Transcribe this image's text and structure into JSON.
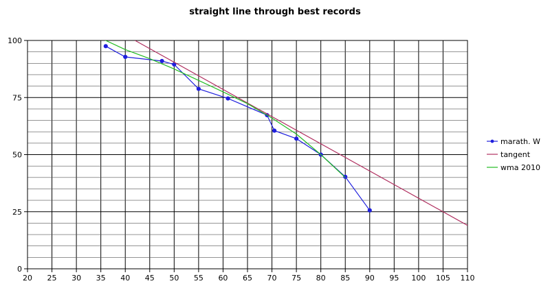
{
  "chart_data": {
    "type": "line",
    "title": "straight line through best records",
    "xlabel": "",
    "ylabel": "",
    "xlim": [
      20,
      110
    ],
    "ylim": [
      0,
      100
    ],
    "x_ticks": [
      20,
      25,
      30,
      35,
      40,
      45,
      50,
      55,
      60,
      65,
      70,
      75,
      80,
      85,
      90,
      95,
      100,
      105,
      110
    ],
    "y_ticks": [
      0,
      25,
      50,
      75,
      100
    ],
    "grid": true,
    "legend_position": "right",
    "series": [
      {
        "name": "marath. W",
        "color": "#1f1fdd",
        "markers": true,
        "points": [
          [
            36,
            97.5
          ],
          [
            40,
            92.8
          ],
          [
            47.5,
            91
          ],
          [
            50,
            89.5
          ],
          [
            55,
            78.8
          ],
          [
            61,
            74.6
          ],
          [
            69,
            67.3
          ],
          [
            70.5,
            60.5
          ],
          [
            75,
            57
          ],
          [
            80,
            50
          ],
          [
            85,
            40.3
          ],
          [
            90,
            25.6
          ]
        ]
      },
      {
        "name": "tangent",
        "color": "#b03060",
        "markers": false,
        "points": [
          [
            42,
            100
          ],
          [
            110,
            19
          ]
        ]
      },
      {
        "name": "wma 2010",
        "color": "#22bb22",
        "markers": false,
        "points": [
          [
            35,
            101
          ],
          [
            40,
            96
          ],
          [
            45,
            92
          ],
          [
            50,
            87.5
          ],
          [
            55,
            82.5
          ],
          [
            60,
            77.5
          ],
          [
            65,
            72.3
          ],
          [
            70,
            66
          ],
          [
            75,
            59
          ],
          [
            80,
            50
          ],
          [
            85,
            40
          ]
        ]
      }
    ]
  }
}
